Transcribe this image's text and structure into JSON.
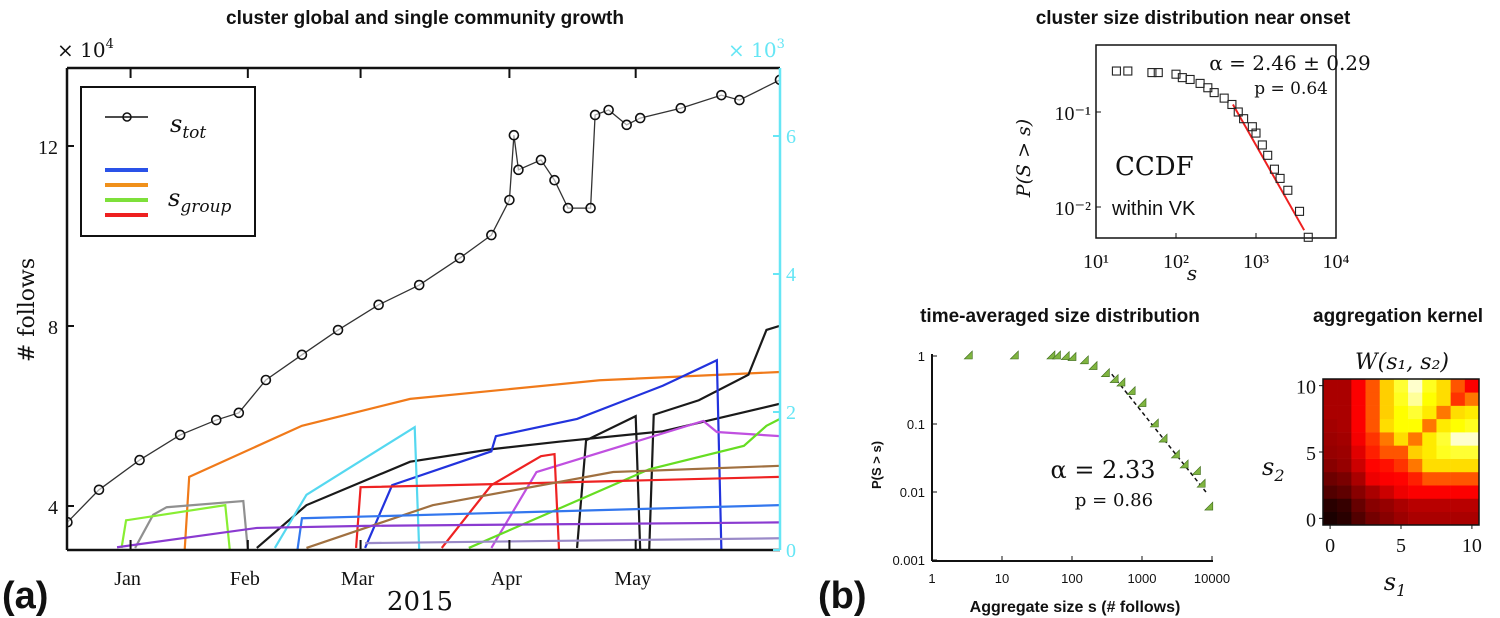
{
  "panel_labels": {
    "a": "(a)",
    "b": "(b)"
  },
  "chart_data": [
    {
      "type": "line",
      "title": "cluster global and single community growth",
      "xlabel": "2015",
      "ylabel": "# follows",
      "y_multiplier_left": "× 10",
      "y_multiplier_left_exp": "4",
      "y_multiplier_right": "× 10",
      "y_multiplier_right_exp": "3",
      "right_axis_color": "#66e6f5",
      "xlim": [
        "2014-12-25",
        "2015-06-01"
      ],
      "ylim_left": [
        3.02,
        13.73
      ],
      "ylim_right": [
        0,
        6.99
      ],
      "x_ticks": [
        {
          "date": "2015-01-08",
          "label": "Jan"
        },
        {
          "date": "2015-02-03",
          "label": "Feb"
        },
        {
          "date": "2015-02-28",
          "label": "Mar"
        },
        {
          "date": "2015-04-02",
          "label": "Apr"
        },
        {
          "date": "2015-04-30",
          "label": "May"
        }
      ],
      "y_ticks_left": [
        {
          "v": 4,
          "label": "4"
        },
        {
          "v": 8,
          "label": "8"
        },
        {
          "v": 12,
          "label": "12"
        }
      ],
      "y_ticks_right": [
        {
          "v": 0,
          "label": "0"
        },
        {
          "v": 2,
          "label": "2"
        },
        {
          "v": 4,
          "label": "4"
        },
        {
          "v": 6,
          "label": "6"
        }
      ],
      "legend": {
        "placement": "top-left",
        "s_tot": {
          "main": "s",
          "sub": "tot"
        },
        "s_group": {
          "main": "s",
          "sub": "group"
        },
        "group_swatches": [
          "#2a52e8",
          "#f0901a",
          "#7ee03a",
          "#ee2020"
        ]
      },
      "s_tot": {
        "axis": "left",
        "color": "#333333",
        "points": [
          [
            "2014-12-25",
            3.64
          ],
          [
            "2015-01-01",
            4.36
          ],
          [
            "2015-01-10",
            5.02
          ],
          [
            "2015-01-19",
            5.58
          ],
          [
            "2015-01-27",
            5.91
          ],
          [
            "2015-02-01",
            6.07
          ],
          [
            "2015-02-07",
            6.8
          ],
          [
            "2015-02-15",
            7.36
          ],
          [
            "2015-02-23",
            7.91
          ],
          [
            "2015-03-04",
            8.47
          ],
          [
            "2015-03-13",
            8.91
          ],
          [
            "2015-03-22",
            9.51
          ],
          [
            "2015-03-29",
            10.02
          ],
          [
            "2015-04-02",
            10.8
          ],
          [
            "2015-04-03",
            12.24
          ],
          [
            "2015-04-04",
            11.47
          ],
          [
            "2015-04-09",
            11.69
          ],
          [
            "2015-04-12",
            11.24
          ],
          [
            "2015-04-15",
            10.62
          ],
          [
            "2015-04-20",
            10.62
          ],
          [
            "2015-04-21",
            12.69
          ],
          [
            "2015-04-24",
            12.8
          ],
          [
            "2015-04-28",
            12.47
          ],
          [
            "2015-05-01",
            12.62
          ],
          [
            "2015-05-10",
            12.84
          ],
          [
            "2015-05-19",
            13.13
          ],
          [
            "2015-05-23",
            13.02
          ],
          [
            "2015-06-01",
            13.47
          ]
        ]
      },
      "s_group_series": [
        {
          "color": "#f07a1a",
          "points": [
            [
              "2015-01-20",
              0
            ],
            [
              "2015-01-21",
              1.06
            ],
            [
              "2015-02-15",
              1.8
            ],
            [
              "2015-03-11",
              2.19
            ],
            [
              "2015-04-22",
              2.46
            ],
            [
              "2015-06-01",
              2.58
            ]
          ]
        },
        {
          "color": "#1a1a1a",
          "points": [
            [
              "2015-02-05",
              0.03
            ],
            [
              "2015-02-16",
              0.65
            ],
            [
              "2015-03-11",
              1.28
            ],
            [
              "2015-03-29",
              1.46
            ],
            [
              "2015-04-13",
              1.57
            ],
            [
              "2015-05-06",
              1.72
            ],
            [
              "2015-06-01",
              2.12
            ]
          ]
        },
        {
          "color": "#1a1a1a",
          "points": [
            [
              "2015-04-17",
              0.03
            ],
            [
              "2015-04-19",
              1.59
            ],
            [
              "2015-04-30",
              1.94
            ],
            [
              "2015-05-01",
              0
            ]
          ]
        },
        {
          "color": "#1a1a1a",
          "points": [
            [
              "2015-05-03",
              0
            ],
            [
              "2015-05-04",
              1.96
            ],
            [
              "2015-05-14",
              2.17
            ],
            [
              "2015-05-25",
              2.54
            ],
            [
              "2015-05-29",
              3.19
            ],
            [
              "2015-06-01",
              3.25
            ]
          ]
        },
        {
          "color": "#2233dd",
          "points": [
            [
              "2015-03-01",
              0.03
            ],
            [
              "2015-03-07",
              0.94
            ],
            [
              "2015-03-29",
              1.43
            ],
            [
              "2015-03-30",
              1.65
            ],
            [
              "2015-04-17",
              1.9
            ],
            [
              "2015-05-06",
              2.38
            ],
            [
              "2015-05-18",
              2.75
            ],
            [
              "2015-05-19",
              0
            ]
          ]
        },
        {
          "color": "#55d8f0",
          "points": [
            [
              "2015-02-09",
              0.03
            ],
            [
              "2015-02-16",
              0.8
            ],
            [
              "2015-03-12",
              1.78
            ],
            [
              "2015-03-13",
              0
            ]
          ]
        },
        {
          "color": "#c050e0",
          "points": [
            [
              "2015-03-29",
              0.03
            ],
            [
              "2015-04-08",
              1.13
            ],
            [
              "2015-05-15",
              1.87
            ],
            [
              "2015-05-18",
              1.71
            ],
            [
              "2015-06-01",
              1.65
            ]
          ]
        },
        {
          "color": "#66dd22",
          "points": [
            [
              "2015-03-24",
              0.03
            ],
            [
              "2015-05-03",
              1.17
            ],
            [
              "2015-05-24",
              1.51
            ],
            [
              "2015-05-29",
              1.8
            ],
            [
              "2015-06-01",
              1.9
            ]
          ]
        },
        {
          "color": "#ee2222",
          "points": [
            [
              "2015-03-18",
              0.03
            ],
            [
              "2015-03-29",
              0.94
            ],
            [
              "2015-04-09",
              1.36
            ],
            [
              "2015-04-12",
              1.39
            ],
            [
              "2015-04-13",
              0
            ]
          ]
        },
        {
          "color": "#ee2222",
          "points": [
            [
              "2015-02-27",
              0.03
            ],
            [
              "2015-02-28",
              0.91
            ],
            [
              "2015-04-02",
              0.96
            ],
            [
              "2015-06-01",
              1.06
            ]
          ]
        },
        {
          "color": "#a07040",
          "points": [
            [
              "2015-02-16",
              0.03
            ],
            [
              "2015-03-16",
              0.65
            ],
            [
              "2015-04-25",
              1.13
            ],
            [
              "2015-06-01",
              1.22
            ]
          ]
        },
        {
          "color": "#909090",
          "points": [
            [
              "2015-01-09",
              0.03
            ],
            [
              "2015-01-13",
              0.51
            ],
            [
              "2015-01-16",
              0.62
            ],
            [
              "2015-02-02",
              0.71
            ],
            [
              "2015-02-03",
              0
            ]
          ]
        },
        {
          "color": "#88ee33",
          "points": [
            [
              "2015-01-06",
              0.03
            ],
            [
              "2015-01-07",
              0.43
            ],
            [
              "2015-01-29",
              0.65
            ],
            [
              "2015-01-30",
              0
            ]
          ]
        },
        {
          "color": "#3377ee",
          "points": [
            [
              "2015-02-14",
              0
            ],
            [
              "2015-02-15",
              0.46
            ],
            [
              "2015-06-01",
              0.65
            ]
          ]
        },
        {
          "color": "#8a3ad0",
          "points": [
            [
              "2015-01-05",
              0.04
            ],
            [
              "2015-02-05",
              0.32
            ],
            [
              "2015-03-01",
              0.35
            ],
            [
              "2015-06-01",
              0.4
            ]
          ]
        },
        {
          "color": "#9a8ac8",
          "points": [
            [
              "2015-03-01",
              0.1
            ],
            [
              "2015-06-01",
              0.17
            ]
          ]
        }
      ]
    },
    {
      "type": "scatter",
      "title": "cluster size distribution near onset",
      "xlabel": "s",
      "ylabel": "P(S > s)",
      "xscale": "log",
      "yscale": "log",
      "xlim": [
        10,
        10000
      ],
      "ylim": [
        0.0047,
        0.507
      ],
      "x_ticks": [
        {
          "v": 10,
          "label": "10¹"
        },
        {
          "v": 100,
          "label": "10²"
        },
        {
          "v": 1000,
          "label": "10³"
        },
        {
          "v": 10000,
          "label": "10⁴"
        }
      ],
      "y_ticks": [
        {
          "v": 0.1,
          "label": "10⁻¹"
        },
        {
          "v": 0.01,
          "label": "10⁻²"
        }
      ],
      "annotations": {
        "alpha": "α = 2.46 ± 0.29",
        "p": "p = 0.64",
        "ccdf": "CCDF",
        "within": "within VK"
      },
      "marker": "square-open",
      "points": [
        [
          18,
          0.27
        ],
        [
          25,
          0.27
        ],
        [
          50,
          0.26
        ],
        [
          60,
          0.26
        ],
        [
          100,
          0.25
        ],
        [
          120,
          0.23
        ],
        [
          150,
          0.22
        ],
        [
          200,
          0.2
        ],
        [
          250,
          0.18
        ],
        [
          300,
          0.16
        ],
        [
          400,
          0.14
        ],
        [
          500,
          0.12
        ],
        [
          600,
          0.1
        ],
        [
          700,
          0.085
        ],
        [
          900,
          0.07
        ],
        [
          1000,
          0.06
        ],
        [
          1200,
          0.045
        ],
        [
          1400,
          0.035
        ],
        [
          1700,
          0.025
        ],
        [
          2000,
          0.02
        ],
        [
          2500,
          0.015
        ],
        [
          3500,
          0.009
        ],
        [
          4500,
          0.0048
        ]
      ],
      "fit": {
        "color": "#ee2020",
        "points": [
          [
            515,
            0.12
          ],
          [
            4000,
            0.0057
          ]
        ]
      }
    },
    {
      "type": "scatter",
      "title": "time-averaged size distribution",
      "xlabel": "Aggregate size s (# follows)",
      "ylabel": "P(S > s)",
      "xscale": "log",
      "yscale": "log",
      "xlim": [
        1,
        10000
      ],
      "ylim": [
        0.001,
        1
      ],
      "x_ticks": [
        {
          "v": 1,
          "label": "1"
        },
        {
          "v": 10,
          "label": "10"
        },
        {
          "v": 100,
          "label": "100"
        },
        {
          "v": 1000,
          "label": "1000"
        },
        {
          "v": 10000,
          "label": "10000"
        }
      ],
      "y_ticks": [
        {
          "v": 1,
          "label": "1"
        },
        {
          "v": 0.1,
          "label": "0.1"
        },
        {
          "v": 0.01,
          "label": "0.01"
        },
        {
          "v": 0.001,
          "label": "0.001"
        }
      ],
      "annotations": {
        "alpha": "α = 2.33",
        "p": "p = 0.86"
      },
      "marker": "triangle-green",
      "marker_color": "#7fb440",
      "points": [
        [
          3.3,
          1
        ],
        [
          15,
          1
        ],
        [
          50,
          1
        ],
        [
          60,
          1
        ],
        [
          80,
          0.98
        ],
        [
          100,
          0.95
        ],
        [
          150,
          0.85
        ],
        [
          200,
          0.7
        ],
        [
          300,
          0.55
        ],
        [
          400,
          0.45
        ],
        [
          500,
          0.4
        ],
        [
          700,
          0.3
        ],
        [
          1000,
          0.2
        ],
        [
          1500,
          0.1
        ],
        [
          2000,
          0.06
        ],
        [
          3000,
          0.035
        ],
        [
          4000,
          0.025
        ],
        [
          6000,
          0.02
        ],
        [
          7000,
          0.013
        ],
        [
          9000,
          0.006
        ]
      ],
      "fit": {
        "style": "dashed",
        "points": [
          [
            370,
            0.54
          ],
          [
            8200,
            0.01
          ]
        ]
      }
    },
    {
      "type": "heatmap",
      "title": "aggregation kernel",
      "matrix_label": "W(s₁, s₂)",
      "xlabel": {
        "main": "s",
        "sub": "1"
      },
      "ylabel": {
        "main": "s",
        "sub": "2"
      },
      "colormap": "hot",
      "x_ticks": [
        {
          "v": 0,
          "label": "0"
        },
        {
          "v": 5,
          "label": "5"
        },
        {
          "v": 10,
          "label": "10"
        }
      ],
      "y_ticks": [
        {
          "v": 0,
          "label": "0"
        },
        {
          "v": 5,
          "label": "5"
        },
        {
          "v": 10,
          "label": "10"
        }
      ],
      "rows_s2_from_0": [
        [
          0.04,
          0.06,
          0.12,
          0.17,
          0.2,
          0.23,
          0.25,
          0.25,
          0.25,
          0.25,
          0.25
        ],
        [
          0.06,
          0.08,
          0.15,
          0.2,
          0.22,
          0.25,
          0.27,
          0.27,
          0.27,
          0.27,
          0.27
        ],
        [
          0.12,
          0.14,
          0.2,
          0.25,
          0.3,
          0.35,
          0.37,
          0.37,
          0.37,
          0.37,
          0.37
        ],
        [
          0.16,
          0.18,
          0.25,
          0.35,
          0.37,
          0.38,
          0.42,
          0.5,
          0.5,
          0.5,
          0.5
        ],
        [
          0.2,
          0.22,
          0.3,
          0.38,
          0.4,
          0.45,
          0.55,
          0.7,
          0.7,
          0.7,
          0.7
        ],
        [
          0.22,
          0.23,
          0.33,
          0.42,
          0.5,
          0.5,
          0.68,
          0.72,
          0.78,
          0.8,
          0.8
        ],
        [
          0.23,
          0.24,
          0.36,
          0.45,
          0.55,
          0.7,
          0.55,
          0.72,
          0.8,
          0.95,
          0.95
        ],
        [
          0.24,
          0.25,
          0.37,
          0.5,
          0.7,
          0.75,
          0.75,
          0.55,
          0.72,
          0.75,
          0.78
        ],
        [
          0.25,
          0.25,
          0.37,
          0.5,
          0.68,
          0.75,
          0.8,
          0.72,
          0.55,
          0.7,
          0.72
        ],
        [
          0.25,
          0.25,
          0.37,
          0.5,
          0.68,
          0.78,
          0.9,
          0.75,
          0.7,
          0.45,
          0.55
        ],
        [
          0.25,
          0.25,
          0.37,
          0.5,
          0.68,
          0.8,
          0.95,
          0.78,
          0.7,
          0.5,
          0.37
        ]
      ]
    }
  ]
}
